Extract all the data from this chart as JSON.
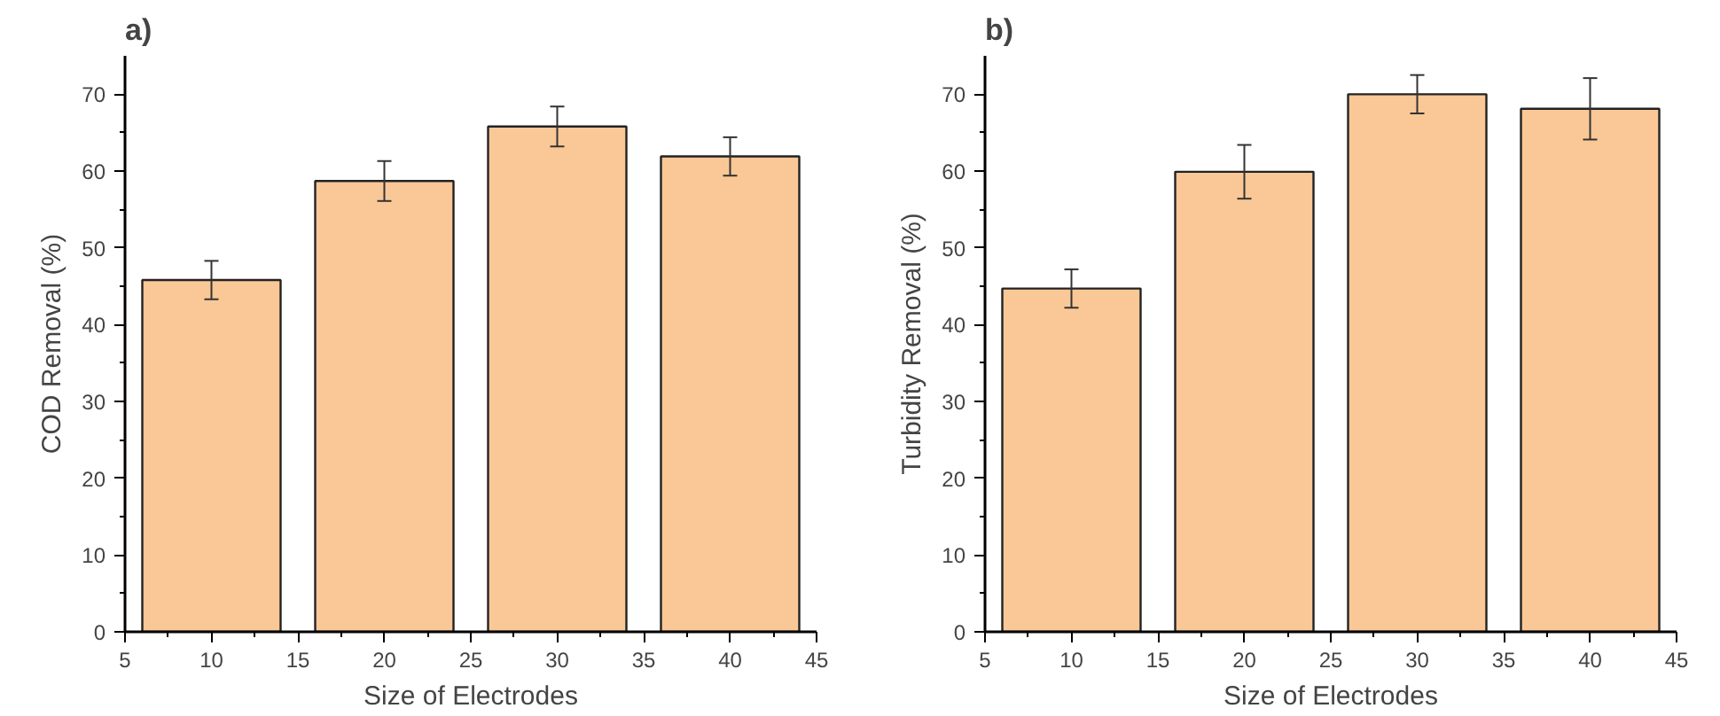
{
  "chart_data": [
    {
      "type": "bar",
      "title": "a)",
      "xlabel": "Size of Electrodes",
      "ylabel": "COD Removal (%)",
      "x": [
        10,
        20,
        30,
        40
      ],
      "series": [
        {
          "color": "#fac896",
          "values": [
            45.8,
            58.7,
            65.8,
            61.9
          ],
          "errors": [
            2.5,
            2.6,
            2.6,
            2.5
          ]
        }
      ],
      "xlim": [
        5,
        45
      ],
      "xticks": [
        5,
        10,
        15,
        20,
        25,
        30,
        35,
        40,
        45
      ],
      "ylim": [
        0,
        75
      ],
      "yticks": [
        0,
        10,
        20,
        30,
        40,
        50,
        60,
        70
      ],
      "grid": false
    },
    {
      "type": "bar",
      "title": "b)",
      "xlabel": "Size of Electrodes",
      "ylabel": "Turbidity Removal (%)",
      "x": [
        10,
        20,
        30,
        40
      ],
      "series": [
        {
          "color": "#fac896",
          "values": [
            44.7,
            59.9,
            70.0,
            68.1
          ],
          "errors": [
            2.5,
            3.5,
            2.5,
            4.0
          ]
        }
      ],
      "xlim": [
        5,
        45
      ],
      "xticks": [
        5,
        10,
        15,
        20,
        25,
        30,
        35,
        40,
        45
      ],
      "ylim": [
        0,
        75
      ],
      "yticks": [
        0,
        10,
        20,
        30,
        40,
        50,
        60,
        70
      ],
      "grid": false
    }
  ]
}
